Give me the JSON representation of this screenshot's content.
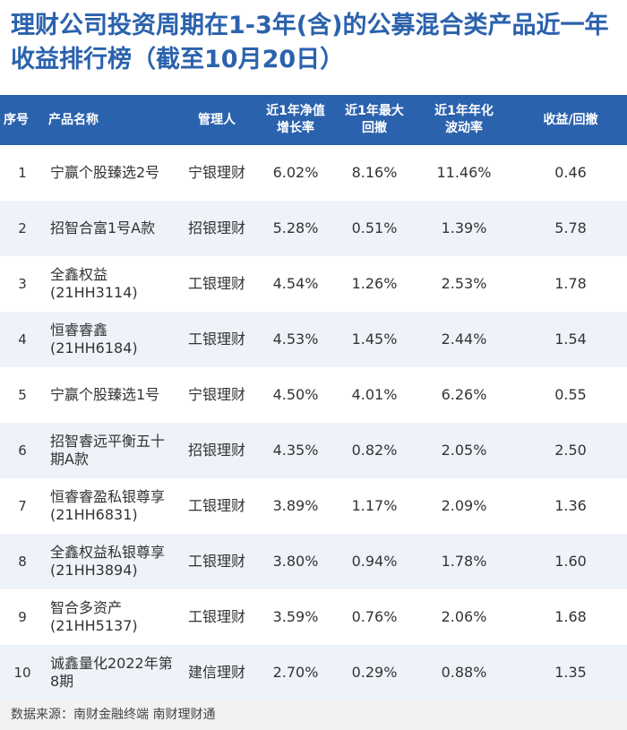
{
  "title": "理财公司投资周期在1-3年(含)的公募混合类产品近一年收益排行榜（截至10月20日）",
  "chart_data": {
    "type": "table",
    "columns": [
      "序号",
      "产品名称",
      "管理人",
      "近1年净值增长率",
      "近1年最大回撤",
      "近1年年化波动率",
      "收益/回撤"
    ],
    "rows": [
      [
        "1",
        "宁赢个股臻选2号",
        "宁银理财",
        "6.02%",
        "8.16%",
        "11.46%",
        "0.46"
      ],
      [
        "2",
        "招智合富1号A款",
        "招银理财",
        "5.28%",
        "0.51%",
        "1.39%",
        "5.78"
      ],
      [
        "3",
        "全鑫权益(21HH3114)",
        "工银理财",
        "4.54%",
        "1.26%",
        "2.53%",
        "1.78"
      ],
      [
        "4",
        "恒睿睿鑫(21HH6184)",
        "工银理财",
        "4.53%",
        "1.45%",
        "2.44%",
        "1.54"
      ],
      [
        "5",
        "宁赢个股臻选1号",
        "宁银理财",
        "4.50%",
        "4.01%",
        "6.26%",
        "0.55"
      ],
      [
        "6",
        "招智睿远平衡五十期A款",
        "招银理财",
        "4.35%",
        "0.82%",
        "2.05%",
        "2.50"
      ],
      [
        "7",
        "恒睿睿盈私银尊享(21HH6831)",
        "工银理财",
        "3.89%",
        "1.17%",
        "2.09%",
        "1.36"
      ],
      [
        "8",
        "全鑫权益私银尊享(21HH3894)",
        "工银理财",
        "3.80%",
        "0.94%",
        "1.78%",
        "1.60"
      ],
      [
        "9",
        "智合多资产(21HH5137)",
        "工银理财",
        "3.59%",
        "0.76%",
        "2.06%",
        "1.68"
      ],
      [
        "10",
        "诚鑫量化2022年第8期",
        "建信理财",
        "2.70%",
        "0.29%",
        "0.88%",
        "1.35"
      ]
    ]
  },
  "source": "数据来源：南财金融终端 南财理财通",
  "colors": {
    "header_bg": "#2b62ad",
    "title": "#2b62ad",
    "row_alt": "#eef3fa"
  }
}
